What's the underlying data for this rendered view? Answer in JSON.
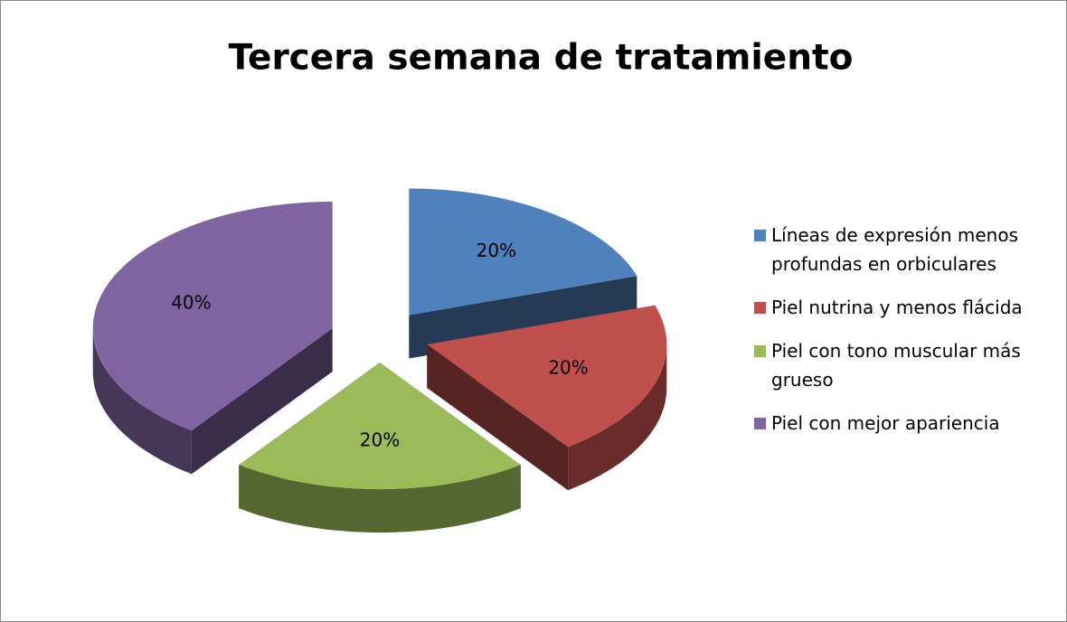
{
  "chart_data": {
    "type": "pie",
    "title": "Tercera semana de tratamiento",
    "categories": [
      "Líneas de expresión menos profundas en orbiculares",
      "Piel nutrina y menos flácida",
      "Piel con tono muscular más grueso",
      "Piel con mejor apariencia"
    ],
    "values": [
      20,
      20,
      20,
      40
    ],
    "value_labels": [
      "20%",
      "20%",
      "20%",
      "40%"
    ],
    "colors": [
      "#4f81bd",
      "#c0504d",
      "#9bbb59",
      "#8064a2"
    ],
    "legend": "right"
  }
}
